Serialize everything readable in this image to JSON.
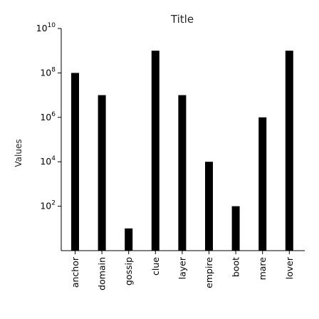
{
  "chart_data": {
    "type": "bar",
    "title": "Title",
    "xlabel": "",
    "ylabel": "Values",
    "yscale": "log",
    "ylim": [
      1,
      10000000000
    ],
    "yticks": [
      {
        "value": 100,
        "base": "10",
        "exp": "2"
      },
      {
        "value": 10000,
        "base": "10",
        "exp": "4"
      },
      {
        "value": 1000000,
        "base": "10",
        "exp": "6"
      },
      {
        "value": 100000000,
        "base": "10",
        "exp": "8"
      },
      {
        "value": 10000000000,
        "base": "10",
        "exp": "10"
      }
    ],
    "categories": [
      "anchor",
      "domain",
      "gossip",
      "clue",
      "layer",
      "empire",
      "boot",
      "mare",
      "lover"
    ],
    "values": [
      100000000,
      10000000,
      10,
      1000000000,
      10000000,
      10000,
      100,
      1000000,
      1000000000
    ],
    "bar_color": "#000000",
    "grid": false
  }
}
